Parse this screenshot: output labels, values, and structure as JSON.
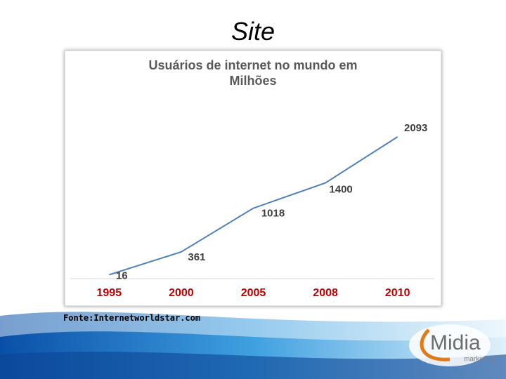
{
  "slide_title": "Site",
  "chart_data": {
    "type": "line",
    "title": "Usuários de internet no mundo em Milhões",
    "categories": [
      "1995",
      "2000",
      "2005",
      "2008",
      "2010"
    ],
    "values": [
      16,
      361,
      1018,
      1400,
      2093
    ],
    "color": "#4f81bd",
    "grid": false
  },
  "source": "Fonte:Internetworldstar.com",
  "logo": {
    "name": "Midia",
    "tagline": "marketing"
  }
}
